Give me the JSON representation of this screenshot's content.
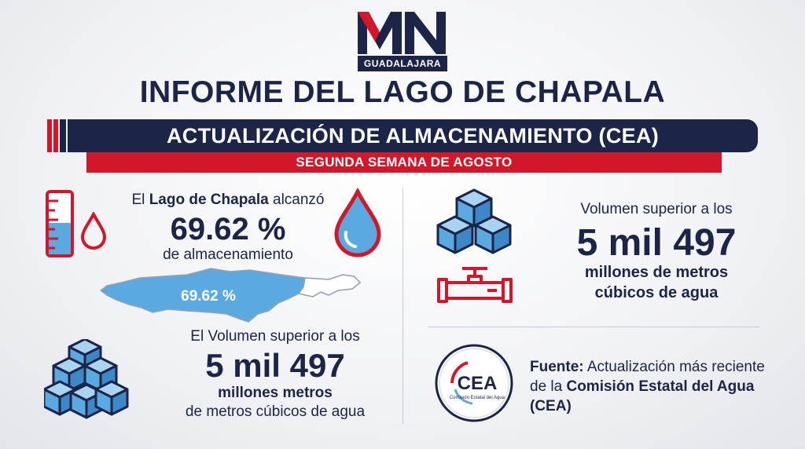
{
  "logo": {
    "letters": "MN",
    "city": "GUADALAJARA"
  },
  "title": "INFORME DEL LAGO DE CHAPALA",
  "banner": "ACTUALIZACIÓN DE ALMACENAMIENTO (CEA)",
  "sub_banner": "SEGUNDA SEMANA DE AGOSTO",
  "storage": {
    "prefix": "El ",
    "lake_name": "Lago de Chapala",
    "suffix": " alcanzó",
    "percent": "69.62 %",
    "caption": "de almacenamiento",
    "level_fraction": 0.6962
  },
  "lake_label": "69.62 %",
  "volume_left": {
    "line1": "El Volumen superior a los",
    "big": "5 mil 497",
    "line3": "millones metros",
    "line4": "de metros cúbicos de agua"
  },
  "volume_right": {
    "line1": "Volumen superior a los",
    "big": "5 mil 497",
    "line3": "millones de metros",
    "line4": "cúbicos de agua"
  },
  "source": {
    "label": "Fuente:",
    "text1": " Actualización más reciente de la ",
    "bold": "Comisión Estatal del Agua (CEA)"
  },
  "cea_logo": {
    "name": "CEA",
    "sub": "Comisión Estatal del Agua"
  },
  "icons": [
    "ruler-gauge-icon",
    "drop-icon",
    "water-drop-icon",
    "cubes-icon",
    "pipe-valve-icon",
    "cea-logo"
  ],
  "colors": {
    "navy": "#1c2447",
    "red": "#d3172a",
    "water": "#5aa9e0",
    "water_dark": "#3b87c8"
  }
}
